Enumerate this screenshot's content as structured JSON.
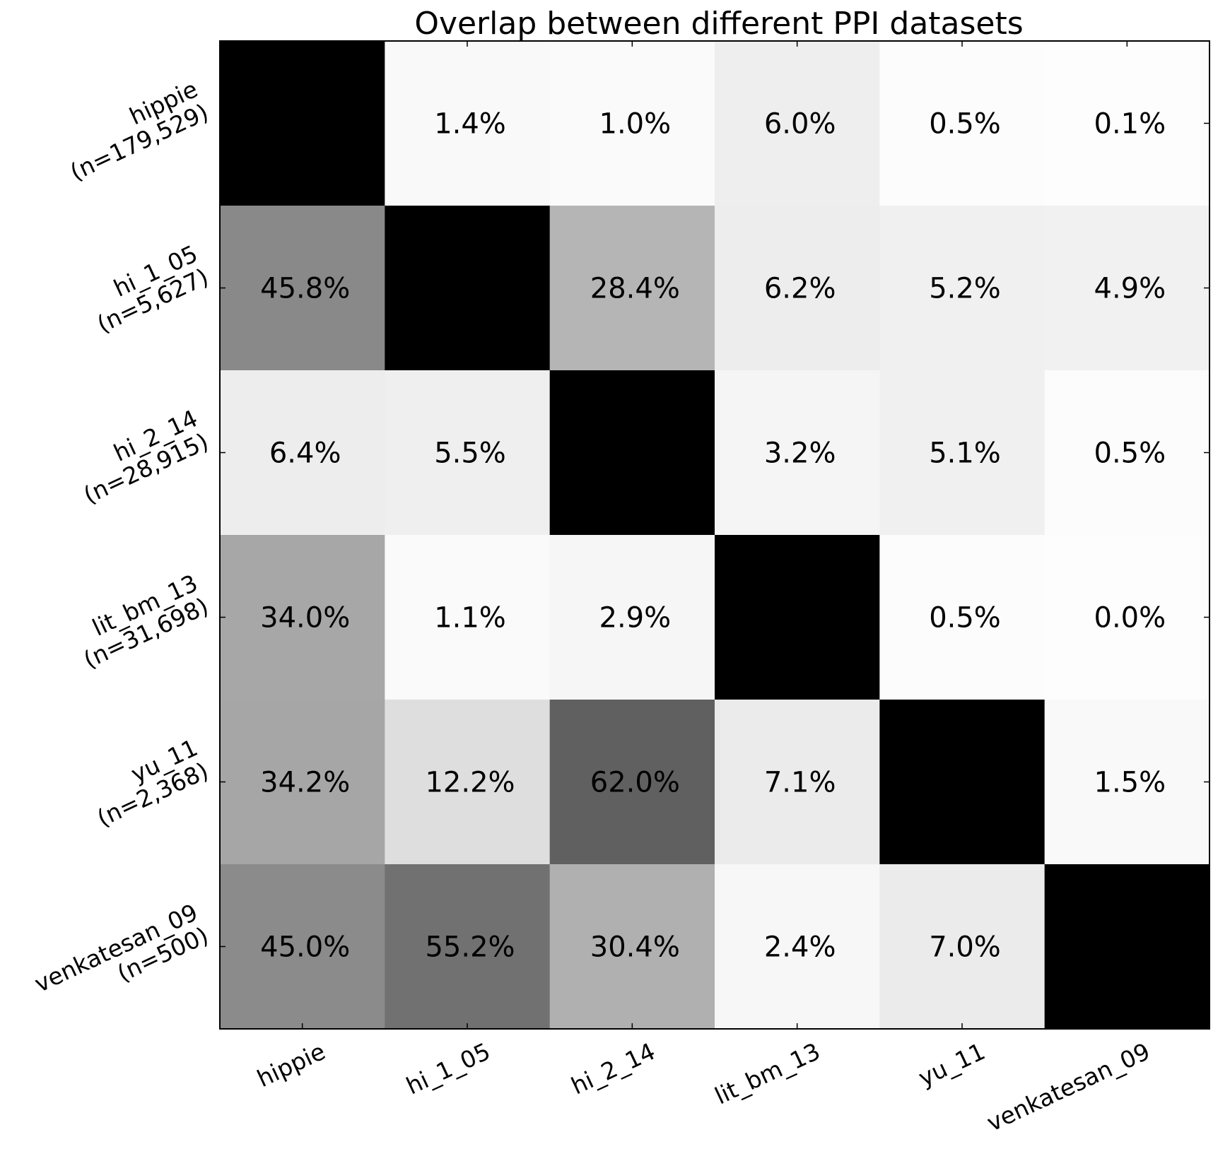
{
  "chart_data": {
    "type": "heatmap",
    "title": "Overlap between different PPI datasets",
    "colormap": "Greys",
    "value_unit": "%",
    "vmin": 0,
    "vmax": 100,
    "diagonal_value": 100,
    "columns": [
      "hippie",
      "hi_1_05",
      "hi_2_14",
      "lit_bm_13",
      "yu_11",
      "venkatesan_09"
    ],
    "rows": [
      {
        "name": "hippie",
        "n_label": "(n=179,529)"
      },
      {
        "name": "hi_1_05",
        "n_label": "(n=5,627)"
      },
      {
        "name": "hi_2_14",
        "n_label": "(n=28,915)"
      },
      {
        "name": "lit_bm_13",
        "n_label": "(n=31,698)"
      },
      {
        "name": "yu_11",
        "n_label": "(n=2,368)"
      },
      {
        "name": "venkatesan_09",
        "n_label": "(n=500)"
      }
    ],
    "values": [
      [
        null,
        1.4,
        1.0,
        6.0,
        0.5,
        0.1
      ],
      [
        45.8,
        null,
        28.4,
        6.2,
        5.2,
        4.9
      ],
      [
        6.4,
        5.5,
        null,
        3.2,
        5.1,
        0.5
      ],
      [
        34.0,
        1.1,
        2.9,
        null,
        0.5,
        0.0
      ],
      [
        34.2,
        12.2,
        62.0,
        7.1,
        null,
        1.5
      ],
      [
        45.0,
        55.2,
        30.4,
        2.4,
        7.0,
        null
      ]
    ],
    "labels": [
      [
        "",
        "1.4%",
        "1.0%",
        "6.0%",
        "0.5%",
        "0.1%"
      ],
      [
        "45.8%",
        "",
        "28.4%",
        "6.2%",
        "5.2%",
        "4.9%"
      ],
      [
        "6.4%",
        "5.5%",
        "",
        "3.2%",
        "5.1%",
        "0.5%"
      ],
      [
        "34.0%",
        "1.1%",
        "2.9%",
        "",
        "0.5%",
        "0.0%"
      ],
      [
        "34.2%",
        "12.2%",
        "62.0%",
        "7.1%",
        "",
        "1.5%"
      ],
      [
        "45.0%",
        "55.2%",
        "30.4%",
        "2.4%",
        "7.0%",
        ""
      ]
    ],
    "xlabel": "",
    "ylabel": "",
    "grid": false,
    "legend": "none"
  }
}
